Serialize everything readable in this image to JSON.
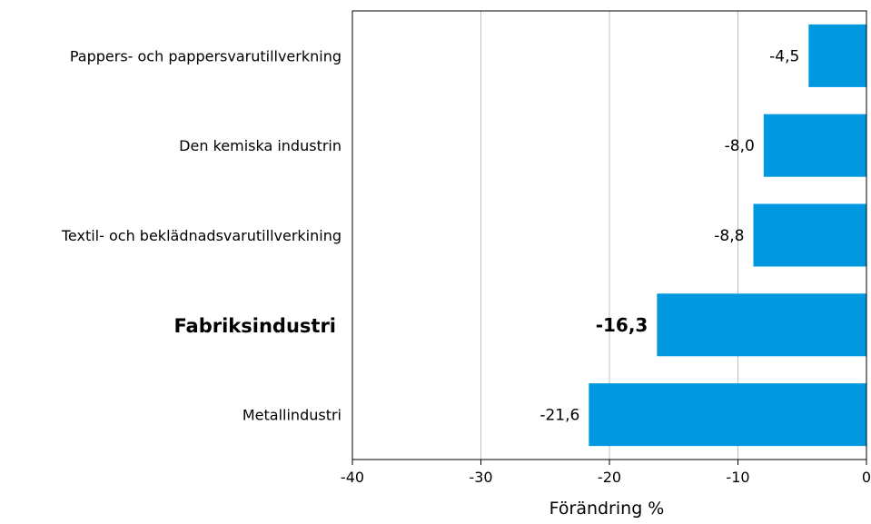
{
  "chart_data": {
    "type": "bar",
    "orientation": "horizontal",
    "categories": [
      "Pappers- och pappersvarutillverkning",
      "Den kemiska industrin",
      "Textil- och beklädnadsvarutillverkining",
      "Fabriksindustri",
      "Metallindustri"
    ],
    "values": [
      -4.5,
      -8.0,
      -8.8,
      -16.3,
      -21.6
    ],
    "value_labels": [
      "-4,5",
      "-8,0",
      "-8,8",
      "-16,3",
      "-21,6"
    ],
    "highlighted": [
      false,
      false,
      false,
      true,
      false
    ],
    "xlabel": "Förändring %",
    "xlim": [
      -40,
      0
    ],
    "ticks": [
      -40,
      -30,
      -20,
      -10,
      0
    ],
    "tick_labels": [
      "-40",
      "-30",
      "-20",
      "-10",
      "0"
    ],
    "grid": true,
    "bar_color": "#0099e0",
    "grid_color": "#c0c0c0"
  }
}
